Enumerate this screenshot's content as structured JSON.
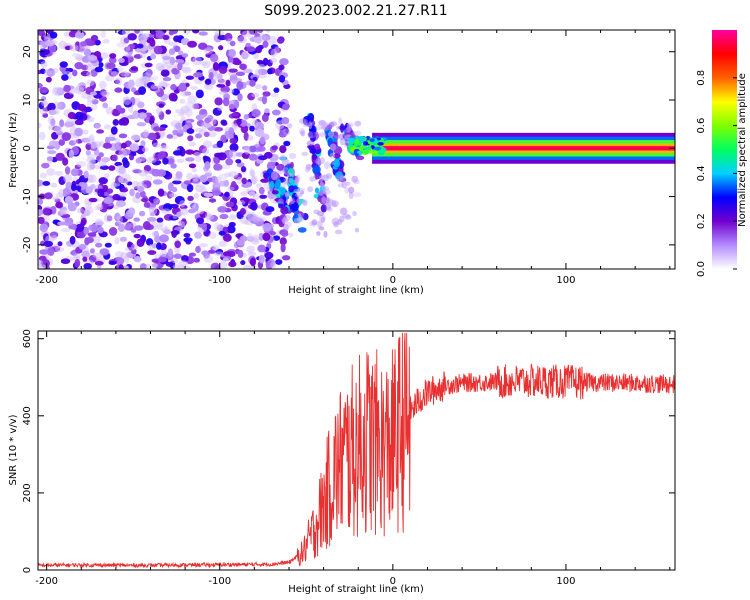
{
  "figure": {
    "title": "S099.2023.002.21.27.R11"
  },
  "chart_data": [
    {
      "type": "heatmap",
      "xlabel": "Height of straight line (km)",
      "ylabel": "Frequency (Hz)",
      "xlim": [
        -205,
        163
      ],
      "ylim": [
        -25,
        24.5
      ],
      "xticks": [
        -200,
        -100,
        0,
        100
      ],
      "xtick_labels": [
        "-200",
        "-100",
        "0",
        "100"
      ],
      "yticks": [
        -20,
        -10,
        0,
        10,
        20
      ],
      "ytick_labels": [
        "-20",
        "-10",
        "0",
        "10",
        "20"
      ],
      "grid": false,
      "colorbar": {
        "label": "Normalized spectral amplitude",
        "range": [
          0,
          1
        ],
        "ticks": [
          0,
          0.2,
          0.4,
          0.6,
          0.8
        ],
        "tick_labels": [
          "0.0",
          "0.2",
          "0.4",
          "0.6",
          "0.8"
        ],
        "colormap": [
          "#ffffff",
          "#b38cff",
          "#7000d0",
          "#0000ff",
          "#00d0ff",
          "#00ff60",
          "#80ff00",
          "#ffff00",
          "#ff6000",
          "#ff0000",
          "#ff00a0"
        ]
      },
      "regions": [
        {
          "x_range": [
            -205,
            -65
          ],
          "y_range": [
            -25,
            24.5
          ],
          "pattern": "broadband noise",
          "amplitude": 0.15
        },
        {
          "x_range": [
            -65,
            -20
          ],
          "y_range": [
            -17,
            8
          ],
          "pattern": "scattered blobs",
          "amplitude": 0.25
        },
        {
          "x_range": [
            -20,
            163
          ],
          "y_range": [
            -1,
            1
          ],
          "pattern": "narrow line at 0 Hz",
          "amplitude": 0.95
        }
      ]
    },
    {
      "type": "line",
      "xlabel": "Height of straight line (km)",
      "ylabel": "SNR (10 * v/v)",
      "xlim": [
        -205,
        163
      ],
      "ylim": [
        0,
        620
      ],
      "xticks": [
        -200,
        -100,
        0,
        100
      ],
      "xtick_labels": [
        "-200",
        "-100",
        "0",
        "100"
      ],
      "yticks": [
        0,
        200,
        400,
        600
      ],
      "ytick_labels": [
        "0",
        "200",
        "400",
        "600"
      ],
      "grid": false,
      "series": [
        {
          "color": "#e83030",
          "points": [
            [
              -205,
              12
            ],
            [
              -180,
              13
            ],
            [
              -150,
              12
            ],
            [
              -120,
              13
            ],
            [
              -90,
              14
            ],
            [
              -70,
              15
            ],
            [
              -60,
              20
            ],
            [
              -52,
              45
            ],
            [
              -45,
              110
            ],
            [
              -40,
              170
            ],
            [
              -35,
              240
            ],
            [
              -30,
              280
            ],
            [
              -25,
              300
            ],
            [
              -20,
              320
            ],
            [
              -15,
              340
            ],
            [
              -10,
              330
            ],
            [
              -5,
              315
            ],
            [
              0,
              330
            ],
            [
              5,
              370
            ],
            [
              10,
              410
            ],
            [
              15,
              440
            ],
            [
              20,
              460
            ],
            [
              30,
              478
            ],
            [
              40,
              485
            ],
            [
              60,
              488
            ],
            [
              80,
              490
            ],
            [
              100,
              488
            ],
            [
              120,
              486
            ],
            [
              140,
              485
            ],
            [
              160,
              482
            ]
          ]
        }
      ]
    }
  ]
}
